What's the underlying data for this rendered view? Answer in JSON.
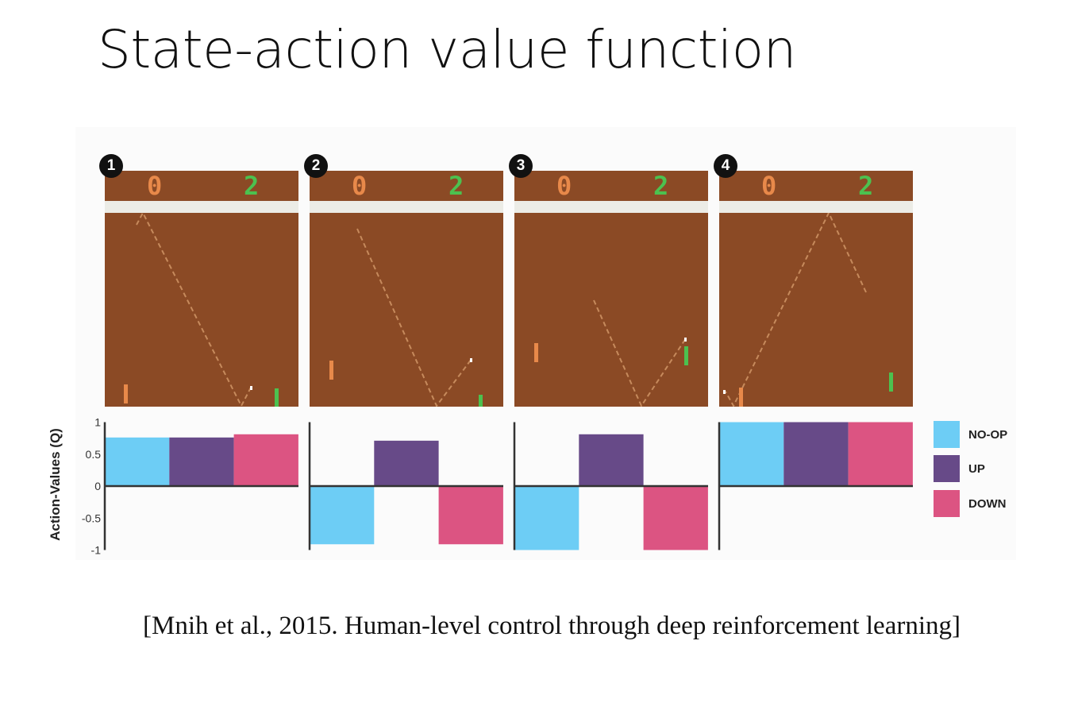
{
  "slide": {
    "title": "State-action value function",
    "citation": "[Mnih et al., 2015. Human-level control through deep reinforcement learning]"
  },
  "frames": [
    {
      "number": "1",
      "score_left": "0",
      "score_right": "2"
    },
    {
      "number": "2",
      "score_left": "0",
      "score_right": "2"
    },
    {
      "number": "3",
      "score_left": "0",
      "score_right": "2"
    },
    {
      "number": "4",
      "score_left": "0",
      "score_right": "2"
    }
  ],
  "colors": {
    "field": "#8b4a25",
    "left_paddle": "#e8894a",
    "right_paddle": "#4cc14f"
  },
  "chart_data": {
    "type": "bar",
    "ylabel": "Action-Values (Q)",
    "ylim": [
      -1,
      1
    ],
    "yticks": [
      "1",
      "0.5",
      "0",
      "-0.5",
      "-1"
    ],
    "ytick_values": [
      1,
      0.5,
      0,
      -0.5,
      -1
    ],
    "legend_placement": "right",
    "series": [
      {
        "name": "NO-OP",
        "color": "#6dcdf5",
        "values": [
          0.76,
          -0.91,
          -1.0,
          1.0
        ]
      },
      {
        "name": "UP",
        "color": "#674a88",
        "values": [
          0.76,
          0.71,
          0.81,
          1.0
        ]
      },
      {
        "name": "DOWN",
        "color": "#dc5482",
        "values": [
          0.81,
          -0.91,
          -1.0,
          1.0
        ]
      }
    ],
    "categories": [
      "1",
      "2",
      "3",
      "4"
    ]
  }
}
